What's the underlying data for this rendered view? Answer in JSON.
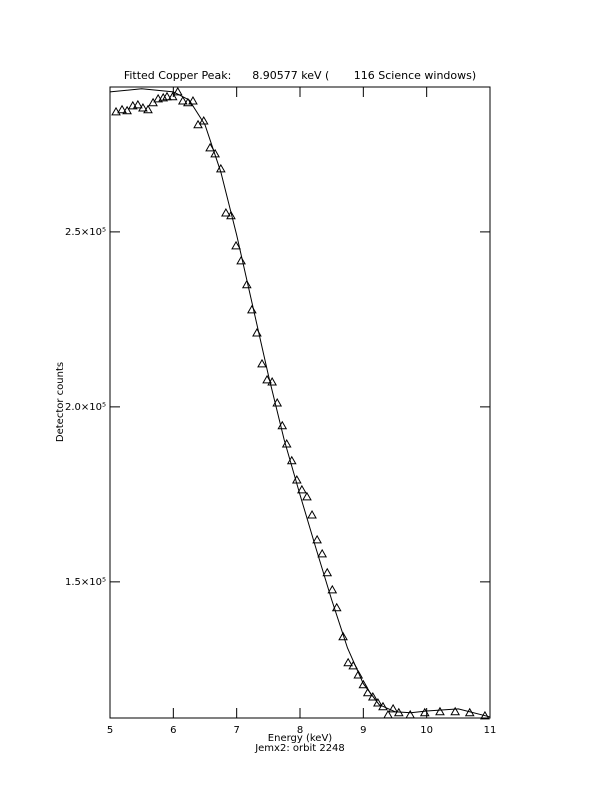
{
  "chart_data": {
    "type": "scatter",
    "title": "Fitted Copper Peak:      8.90577 keV (       116 Science windows)",
    "x_label": "Energy (keV)",
    "y_label": "Detector counts",
    "subtitle": "Jemx2: orbit 2248",
    "xlim": [
      5,
      11
    ],
    "ylim": [
      111100,
      291400
    ],
    "xticks": [
      5,
      6,
      7,
      8,
      9,
      10,
      11
    ],
    "yticks": [
      {
        "value": 150000,
        "label": "1.5×10⁵"
      },
      {
        "value": 200000,
        "label": "2.0×10⁵"
      },
      {
        "value": 250000,
        "label": "2.5×10⁵"
      }
    ],
    "color": "#000000",
    "series": [
      {
        "marker": "triangle",
        "x": [
          5.095,
          5.19,
          5.27,
          5.36,
          5.44,
          5.52,
          5.6,
          5.68,
          5.76,
          5.84,
          5.9,
          5.99,
          6.07,
          6.15,
          6.23,
          6.31,
          6.39,
          6.48,
          6.58,
          6.66,
          6.75,
          6.83,
          6.91,
          6.99,
          7.07,
          7.16,
          7.24,
          7.32,
          7.4,
          7.48,
          7.56,
          7.64,
          7.72,
          7.79,
          7.87,
          7.95,
          8.03,
          8.11,
          8.19,
          8.27,
          8.35,
          8.43,
          8.51,
          8.58,
          8.68,
          8.76,
          8.84,
          8.92,
          9.0,
          9.07,
          9.15,
          9.23,
          9.31,
          9.39,
          9.47,
          9.56,
          9.74,
          9.97,
          10.21,
          10.45,
          10.68,
          10.92
        ],
        "values": [
          284300,
          284900,
          284600,
          286000,
          286300,
          285400,
          284900,
          286900,
          288000,
          288300,
          288600,
          288600,
          290000,
          287400,
          286900,
          287400,
          280600,
          281700,
          274000,
          272300,
          268000,
          255400,
          254600,
          246000,
          241700,
          234900,
          227700,
          221100,
          212300,
          207700,
          207100,
          201100,
          194600,
          189400,
          184600,
          179100,
          176300,
          174300,
          169100,
          162000,
          158000,
          152600,
          147700,
          142600,
          134300,
          126900,
          126000,
          123400,
          120600,
          118300,
          117100,
          115400,
          114300,
          112000,
          113700,
          112600,
          112000,
          112600,
          112900,
          112900,
          112600,
          111700
        ]
      },
      {
        "marker": "line",
        "x": [
          5,
          5.5,
          6,
          6.25,
          6.5,
          6.75,
          7,
          7.25,
          7.5,
          7.75,
          8,
          8.25,
          8.5,
          8.75,
          9,
          9.25,
          9.5,
          9.75,
          10,
          10.5,
          11
        ],
        "values": [
          290000,
          290900,
          290000,
          287700,
          280600,
          267100,
          249100,
          229100,
          209100,
          190600,
          174900,
          159700,
          144900,
          131100,
          120900,
          114900,
          112900,
          112600,
          113100,
          113700,
          111400
        ]
      }
    ]
  }
}
